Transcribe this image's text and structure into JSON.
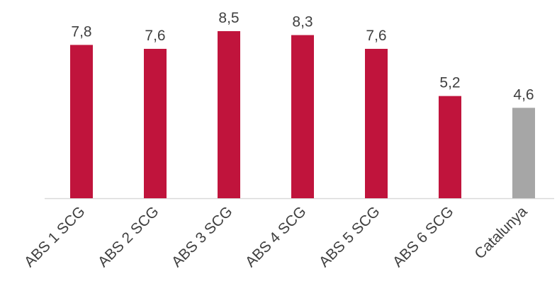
{
  "chart_data": {
    "type": "bar",
    "categories": [
      "ABS 1 SCG",
      "ABS 2 SCG",
      "ABS 3 SCG",
      "ABS 4 SCG",
      "ABS 5 SCG",
      "ABS 6 SCG",
      "Catalunya"
    ],
    "values": [
      7.8,
      7.6,
      8.5,
      8.3,
      7.6,
      5.2,
      4.6
    ],
    "data_labels": [
      "7,8",
      "7,6",
      "8,5",
      "8,3",
      "7,6",
      "5,2",
      "4,6"
    ],
    "title": "",
    "xlabel": "",
    "ylabel": "",
    "ylim": [
      0,
      8.5
    ],
    "grid": false,
    "legend": "none",
    "colors": {
      "highlight": "#C0143C",
      "reference": "#A6A6A6",
      "axis": "#D9D9D9",
      "text": "#404040"
    },
    "bar_colors": [
      "highlight",
      "highlight",
      "highlight",
      "highlight",
      "highlight",
      "highlight",
      "reference"
    ]
  }
}
